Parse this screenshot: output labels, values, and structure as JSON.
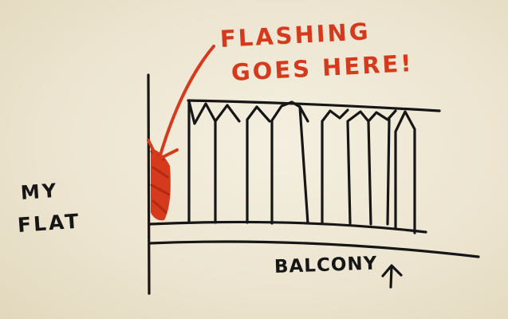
{
  "annotation": {
    "line1": "FLASHING",
    "line2": "GOES HERE!"
  },
  "flat_label": {
    "line1": "MY",
    "line2": "FLAT"
  },
  "balcony_label": "BALCONY",
  "colors": {
    "ink": "#161616",
    "marker_red": "#d63a1c",
    "paper": "#efe8d4"
  }
}
